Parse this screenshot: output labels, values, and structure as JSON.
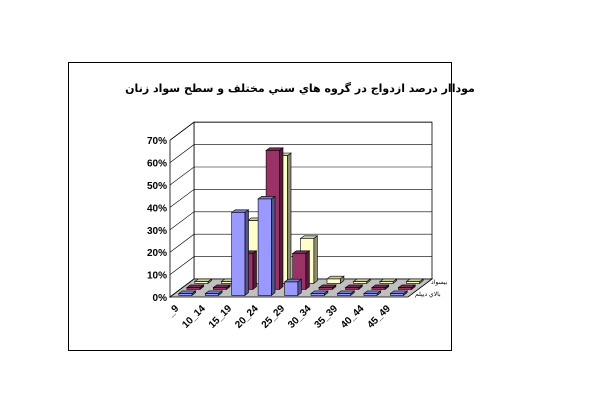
{
  "chart_data": {
    "type": "bar",
    "title": "موداار درصد ازدواج در گروه هاي سني مختلف و سطح سواد زنان",
    "xlabel": "",
    "ylabel": "",
    "ylim": [
      0,
      70
    ],
    "y_ticks": [
      "0%",
      "10%",
      "20%",
      "30%",
      "40%",
      "50%",
      "60%",
      "70%"
    ],
    "categories": [
      "_9",
      "10_14",
      "15_19",
      "20_24",
      "25_29",
      "30_34",
      "35_39",
      "40_44",
      "45_49"
    ],
    "series": [
      {
        "name": "بالاي ديپلم",
        "color": "#9999ff",
        "values": [
          0,
          0,
          37,
          43,
          6,
          0,
          0,
          0,
          0
        ]
      },
      {
        "name": "",
        "color": "#993366",
        "values": [
          0,
          0,
          16,
          62,
          16,
          0,
          0,
          0,
          0
        ]
      },
      {
        "name": "بيسواد",
        "color": "#ffffcc",
        "values": [
          0,
          0,
          28,
          57,
          20,
          2,
          0,
          0,
          0
        ]
      }
    ],
    "grid": true,
    "legend": "none"
  }
}
